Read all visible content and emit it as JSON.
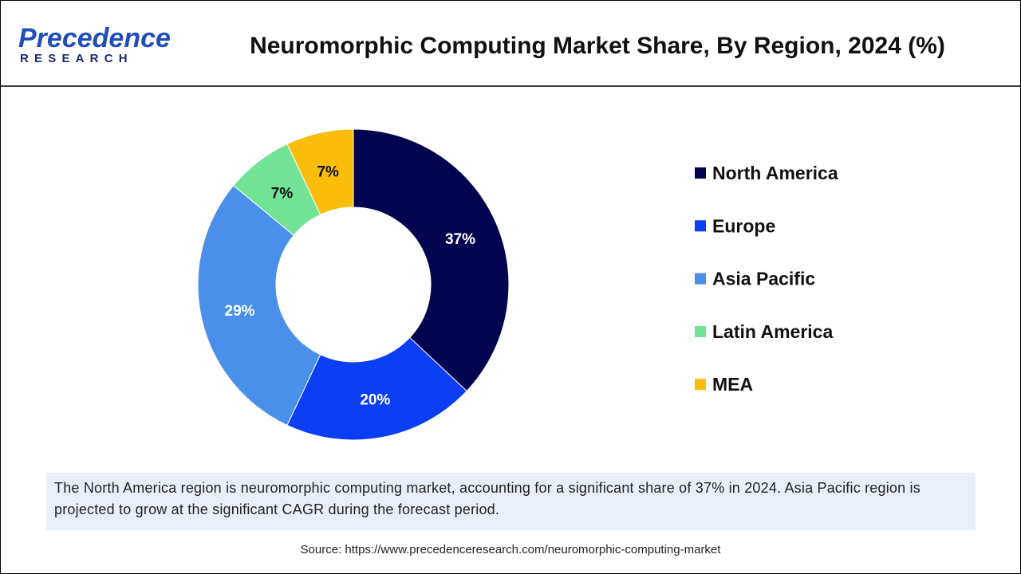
{
  "header": {
    "logo_name": "Precedence",
    "logo_sub": "RESEARCH"
  },
  "chart_data": {
    "type": "pie",
    "donut": true,
    "title": "Neuromorphic Computing Market Share, By Region, 2024 (%)",
    "categories": [
      "North America",
      "Europe",
      "Asia Pacific",
      "Latin America",
      "MEA"
    ],
    "values": [
      37,
      20,
      29,
      7,
      7
    ],
    "value_labels": [
      "37%",
      "20%",
      "29%",
      "7%",
      "7%"
    ],
    "colors": [
      "#03044f",
      "#0b3ef5",
      "#4a8fea",
      "#72e394",
      "#fbbd0c"
    ],
    "legend": "right"
  },
  "description": "The North America region is neuromorphic computing market, accounting for a significant share of 37% in 2024. Asia Pacific region is projected to grow at the significant CAGR during the forecast period.",
  "source": "Source: https://www.precedenceresearch.com/neuromorphic-computing-market"
}
